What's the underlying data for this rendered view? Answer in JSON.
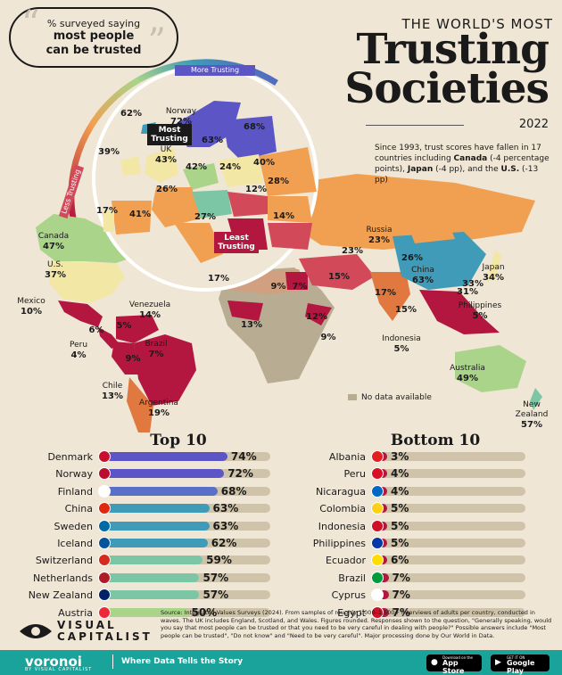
{
  "header": {
    "bubble_small": "% surveyed saying",
    "bubble_big1": "most people",
    "bubble_big2": "can be trusted",
    "title_pre": "THE WORLD'S MOST",
    "title_line1": "Trusting",
    "title_line2": "Societies",
    "year": "2022",
    "note_intro": "Since 1993, trust scores have fallen in 17 countries including ",
    "note_c1": "Canada",
    "note_c1_detail": " (-4 percentage points), ",
    "note_c2": "Japan",
    "note_c2_detail": " (-4 pp), and the ",
    "note_c3": "U.S.",
    "note_c3_detail": " (-13 pp)"
  },
  "map": {
    "scale_more": "More Trusting",
    "scale_less": "Less Trusting",
    "most_trusting": "Most Trusting",
    "least_trusting": "Least Trusting",
    "no_data": "No data available",
    "labels": [
      {
        "name": "Norway",
        "value": "72%"
      },
      {
        "name": "",
        "value": "62%"
      },
      {
        "name": "",
        "value": "68%"
      },
      {
        "name": "",
        "value": "63%"
      },
      {
        "name": "",
        "value": "39%"
      },
      {
        "name": "UK",
        "value": "43%"
      },
      {
        "name": "",
        "value": "42%"
      },
      {
        "name": "",
        "value": "24%"
      },
      {
        "name": "",
        "value": "40%"
      },
      {
        "name": "",
        "value": "26%"
      },
      {
        "name": "",
        "value": "28%"
      },
      {
        "name": "",
        "value": "12%"
      },
      {
        "name": "",
        "value": "17%"
      },
      {
        "name": "",
        "value": "41%"
      },
      {
        "name": "",
        "value": "27%"
      },
      {
        "name": "",
        "value": "14%"
      },
      {
        "name": "Russia",
        "value": "23%"
      },
      {
        "name": "Canada",
        "value": "47%"
      },
      {
        "name": "U.S.",
        "value": "37%"
      },
      {
        "name": "",
        "value": "23%"
      },
      {
        "name": "",
        "value": "26%"
      },
      {
        "name": "China",
        "value": "63%"
      },
      {
        "name": "Japan",
        "value": "34%"
      },
      {
        "name": "",
        "value": "33%"
      },
      {
        "name": "",
        "value": "31%"
      },
      {
        "name": "",
        "value": "17%"
      },
      {
        "name": "",
        "value": "9%"
      },
      {
        "name": "",
        "value": "7%"
      },
      {
        "name": "",
        "value": "15%"
      },
      {
        "name": "",
        "value": "17%"
      },
      {
        "name": "Mexico",
        "value": "10%"
      },
      {
        "name": "Venezuela",
        "value": "14%"
      },
      {
        "name": "Philippines",
        "value": "5%"
      },
      {
        "name": "",
        "value": "6%"
      },
      {
        "name": "",
        "value": "5%"
      },
      {
        "name": "",
        "value": "15%"
      },
      {
        "name": "",
        "value": "13%"
      },
      {
        "name": "",
        "value": "12%"
      },
      {
        "name": "",
        "value": "9%"
      },
      {
        "name": "Brazil",
        "value": "7%"
      },
      {
        "name": "Peru",
        "value": "4%"
      },
      {
        "name": "",
        "value": "9%"
      },
      {
        "name": "Indonesia",
        "value": "5%"
      },
      {
        "name": "Australia",
        "value": "49%"
      },
      {
        "name": "Chile",
        "value": "13%"
      },
      {
        "name": "Argentina",
        "value": "19%"
      },
      {
        "name": "New Zealand",
        "value": "57%"
      }
    ]
  },
  "chart_data": [
    {
      "type": "bar",
      "title": "Top 10",
      "categories": [
        "Denmark",
        "Norway",
        "Finland",
        "China",
        "Sweden",
        "Iceland",
        "Switzerland",
        "Netherlands",
        "New Zealand",
        "Austria"
      ],
      "values": [
        74,
        72,
        68,
        63,
        63,
        62,
        59,
        57,
        57,
        50
      ],
      "labels": [
        "74%",
        "72%",
        "68%",
        "63%",
        "63%",
        "62%",
        "59%",
        "57%",
        "57%",
        "50%"
      ],
      "colors": [
        "#5b55c6",
        "#5b55c6",
        "#5a6fc8",
        "#3f9bb7",
        "#3f9bb7",
        "#3f9bb7",
        "#7cc6a6",
        "#7cc6a6",
        "#7cc6a6",
        "#a9d489"
      ],
      "flags": [
        "#c8102e",
        "#ba0c2f",
        "#ffffff",
        "#de2910",
        "#006aa7",
        "#02529c",
        "#d52b1e",
        "#ae1c28",
        "#012169",
        "#ed2939"
      ],
      "ylim": [
        0,
        100
      ]
    },
    {
      "type": "bar",
      "title": "Bottom 10",
      "categories": [
        "Albania",
        "Peru",
        "Nicaragua",
        "Colombia",
        "Indonesia",
        "Philippines",
        "Ecuador",
        "Brazil",
        "Cyprus",
        "Egypt"
      ],
      "values": [
        3,
        4,
        4,
        5,
        5,
        5,
        6,
        7,
        7,
        7
      ],
      "labels": [
        "3%",
        "4%",
        "4%",
        "5%",
        "5%",
        "5%",
        "6%",
        "7%",
        "7%",
        "7%"
      ],
      "colors": [
        "#b3173f",
        "#b3173f",
        "#b3173f",
        "#b3173f",
        "#b3173f",
        "#b3173f",
        "#b3173f",
        "#b3173f",
        "#b3173f",
        "#b3173f"
      ],
      "flags": [
        "#e41e20",
        "#d91023",
        "#0067c6",
        "#fcd116",
        "#ce1126",
        "#0038a8",
        "#ffdd00",
        "#009c3b",
        "#ffffff",
        "#ce1126"
      ],
      "ylim": [
        0,
        100
      ]
    }
  ],
  "footer": {
    "source": "Source: Integrated Values Surveys (2024). From samples of roughly 1,000–1,500+ interviews of adults per country, conducted in waves. The UK includes England, Scotland, and Wales. Figures rounded. Responses shown to the question, \"Generally speaking, would you say that most people can be trusted or that you need to be very careful in dealing with people?\" Possible answers include \"Most people can be trusted\", \"Do not know\" and \"Need to be very careful\". Major processing done by Our World in Data.",
    "brand_line1": "VISUAL",
    "brand_line2": "CAPITALIST",
    "voronoi": "voronoi",
    "voronoi_sub": "BY VISUAL CAPITALIST",
    "tagline": "Where Data Tells the Story",
    "appstore_small": "Download on the",
    "appstore": "App Store",
    "gplay_small": "GET IT ON",
    "gplay": "Google Play"
  },
  "colors": {
    "background": "#efe6d5",
    "footer": "#1aa39a",
    "most": "#5b55c6",
    "least": "#b3173f",
    "no_data": "#b8ac93"
  }
}
